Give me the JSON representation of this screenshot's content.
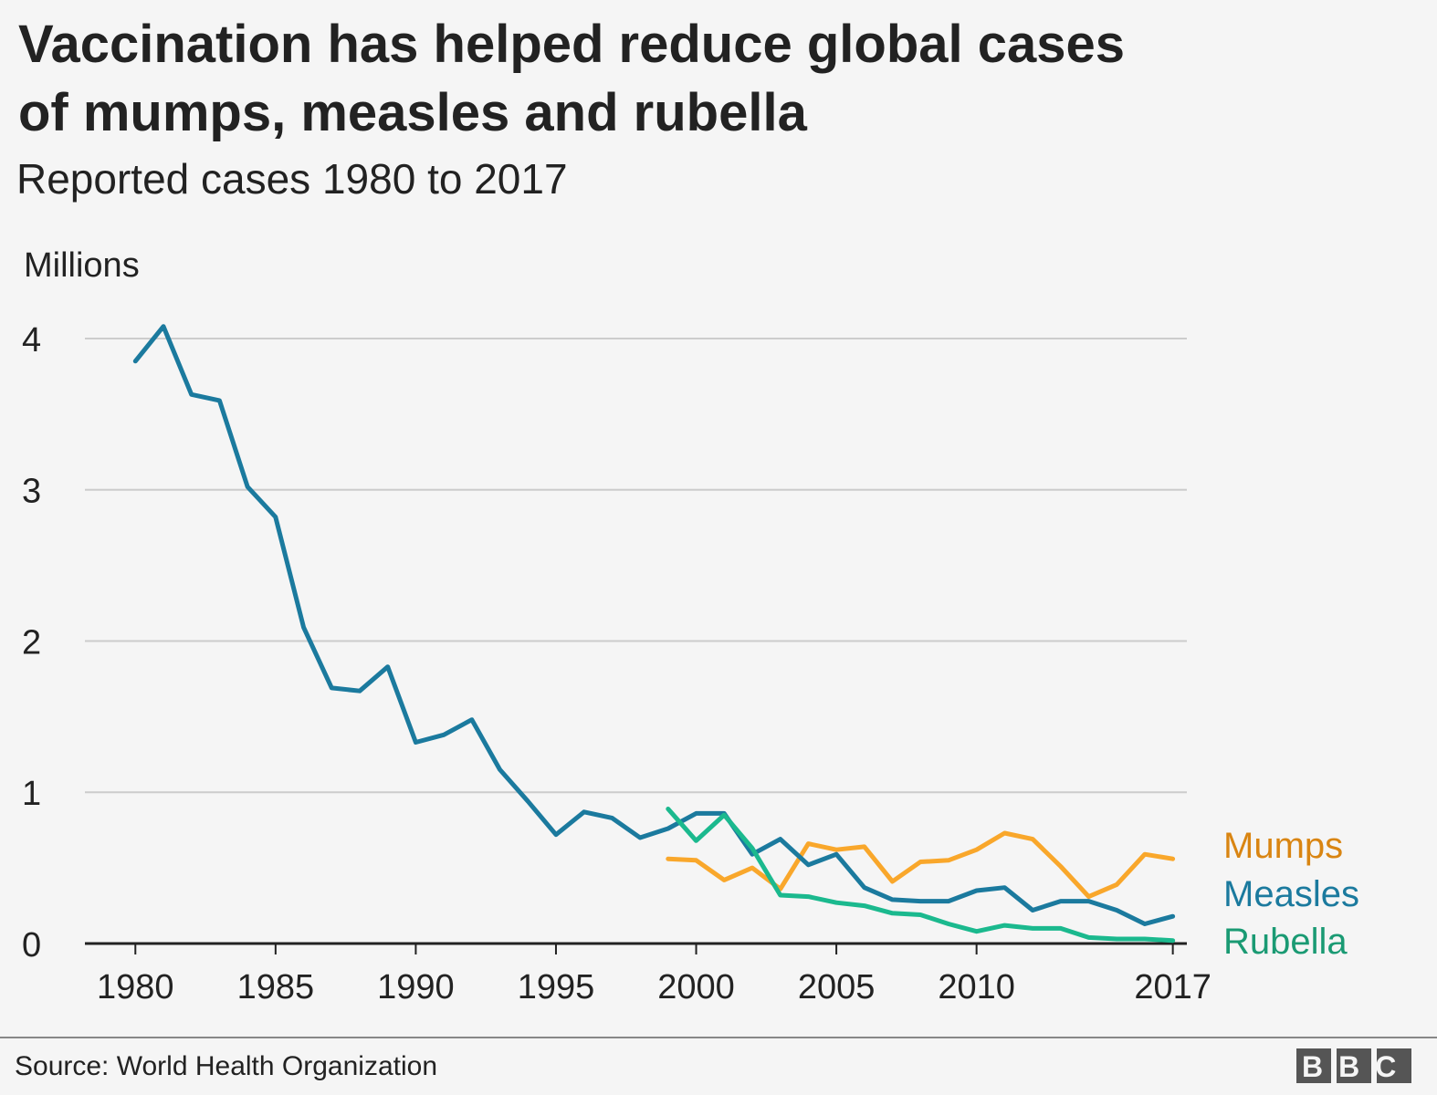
{
  "chart_data": {
    "type": "line",
    "title": [
      "Vaccination has helped reduce global cases",
      "of mumps, measles and rubella"
    ],
    "subtitle": "Reported cases 1980 to 2017",
    "y_label": "Millions",
    "x": [
      1980,
      1981,
      1982,
      1983,
      1984,
      1985,
      1986,
      1987,
      1988,
      1989,
      1990,
      1991,
      1992,
      1993,
      1994,
      1995,
      1996,
      1997,
      1998,
      1999,
      2000,
      2001,
      2002,
      2003,
      2004,
      2005,
      2006,
      2007,
      2008,
      2009,
      2010,
      2011,
      2012,
      2013,
      2014,
      2015,
      2016,
      2017
    ],
    "series": [
      {
        "name": "Mumps",
        "color": "#f9a72b",
        "label_color": "#d98512",
        "values": [
          null,
          null,
          null,
          null,
          null,
          null,
          null,
          null,
          null,
          null,
          null,
          null,
          null,
          null,
          null,
          null,
          null,
          null,
          null,
          0.56,
          0.55,
          0.42,
          0.5,
          0.36,
          0.66,
          0.62,
          0.64,
          0.41,
          0.54,
          0.55,
          0.62,
          0.73,
          0.69,
          0.51,
          0.31,
          0.39,
          0.59,
          0.56
        ]
      },
      {
        "name": "Measles",
        "color": "#1b7a9e",
        "label_color": "#1b7a9e",
        "values": [
          3.85,
          4.08,
          3.63,
          3.59,
          3.02,
          2.82,
          2.09,
          1.69,
          1.67,
          1.83,
          1.33,
          1.38,
          1.48,
          1.15,
          0.94,
          0.72,
          0.87,
          0.83,
          0.7,
          0.76,
          0.86,
          0.86,
          0.59,
          0.69,
          0.52,
          0.59,
          0.37,
          0.29,
          0.28,
          0.28,
          0.35,
          0.37,
          0.22,
          0.28,
          0.28,
          0.22,
          0.13,
          0.18
        ]
      },
      {
        "name": "Rubella",
        "color": "#1bb98e",
        "label_color": "#1a9a73",
        "values": [
          null,
          null,
          null,
          null,
          null,
          null,
          null,
          null,
          null,
          null,
          null,
          null,
          null,
          null,
          null,
          null,
          null,
          null,
          null,
          0.89,
          0.68,
          0.85,
          0.63,
          0.32,
          0.31,
          0.27,
          0.25,
          0.2,
          0.19,
          0.13,
          0.08,
          0.12,
          0.1,
          0.1,
          0.04,
          0.03,
          0.03,
          0.02
        ]
      }
    ],
    "xlim": [
      1978.2,
      2017.5
    ],
    "xticks": [
      1980,
      1985,
      1990,
      1995,
      2000,
      2005,
      2010,
      2017
    ],
    "ylim": [
      0,
      4.1
    ],
    "yticks": [
      0,
      1,
      2,
      3,
      4
    ],
    "grid": true,
    "source": "Source: World Health Organization",
    "logo": "BBC"
  }
}
